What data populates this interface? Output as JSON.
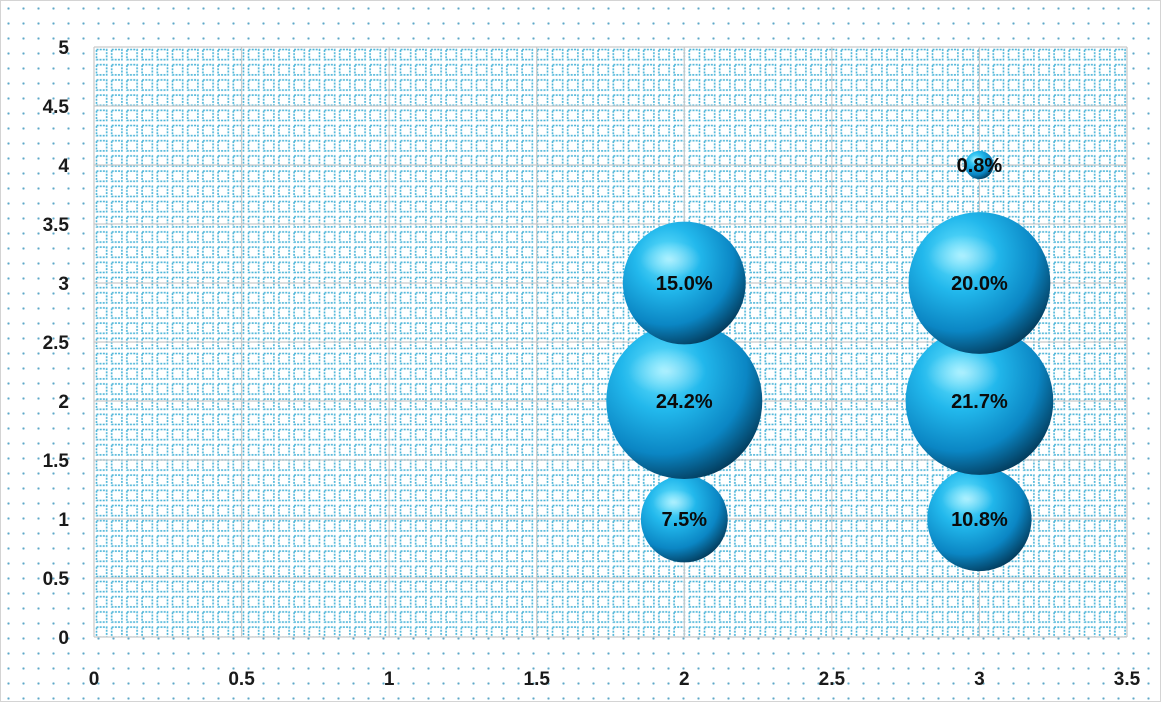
{
  "chart_data": {
    "type": "bubble",
    "title": "",
    "xlabel": "",
    "ylabel": "",
    "xlim": [
      0,
      3.5
    ],
    "ylim": [
      0,
      5
    ],
    "x_ticks": [
      "0",
      "0.5",
      "1",
      "1.5",
      "2",
      "2.5",
      "3",
      "3.5"
    ],
    "y_ticks": [
      "0",
      "0.5",
      "1",
      "1.5",
      "2",
      "2.5",
      "3",
      "3.5",
      "4",
      "4.5",
      "5"
    ],
    "grid": true,
    "legend": "none",
    "bubble_color": "#1aa7e0",
    "points": [
      {
        "x": 2,
        "y": 1,
        "size": 7.5,
        "label": "7.5%"
      },
      {
        "x": 2,
        "y": 2,
        "size": 24.2,
        "label": "24.2%"
      },
      {
        "x": 2,
        "y": 3,
        "size": 15.0,
        "label": "15.0%"
      },
      {
        "x": 3,
        "y": 1,
        "size": 10.8,
        "label": "10.8%"
      },
      {
        "x": 3,
        "y": 2,
        "size": 21.7,
        "label": "21.7%"
      },
      {
        "x": 3,
        "y": 3,
        "size": 20.0,
        "label": "20.0%"
      },
      {
        "x": 3,
        "y": 4,
        "size": 0.8,
        "label": "0.8%"
      }
    ]
  }
}
